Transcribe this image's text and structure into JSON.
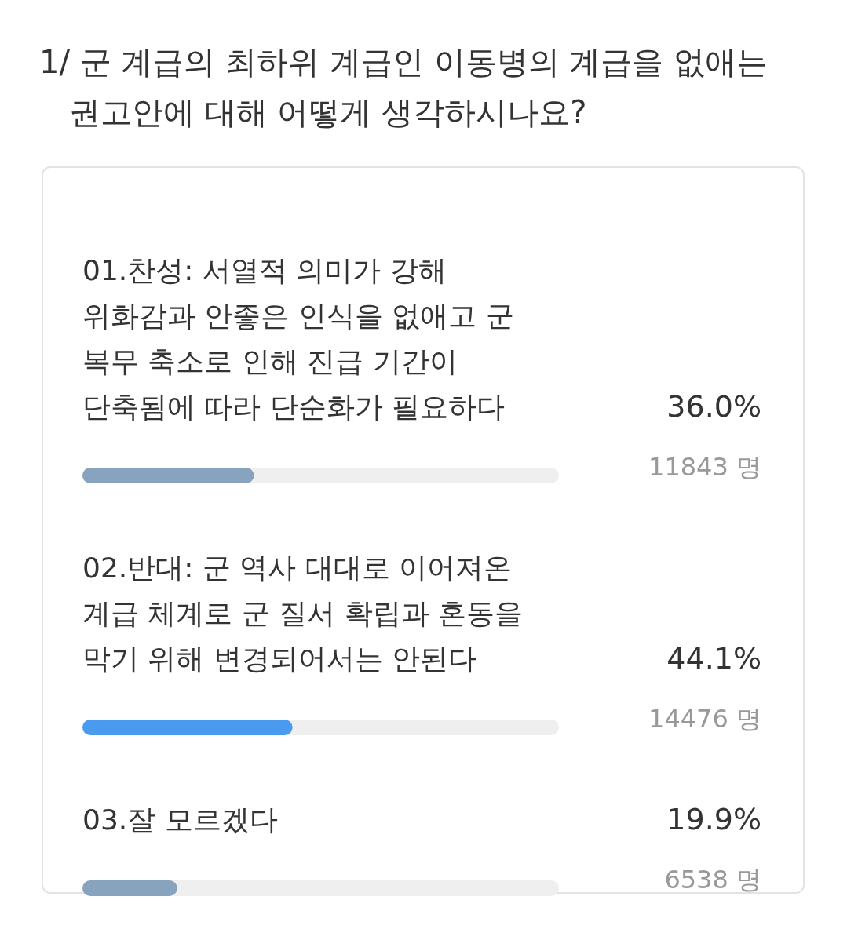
{
  "chart_data": {
    "type": "bar",
    "orientation": "horizontal",
    "title": "1/ 군 계급의 최하위 계급인 이동병의 계급을 없애는 권고안에 대해 어떻게 생각하시나요?",
    "categories": [
      "01.찬성: 서열적 의미가 강해 위화감과 안좋은 인식을 없애고 군 복무 축소로 인해 진급 기간이 단축됨에 따라 단순화가 필요하다",
      "02.반대: 군 역사 대대로 이어져온 계급 체계로 군 질서 확립과 혼동을 막기 위해 변경되어서는 안된다",
      "03.잘 모르겠다"
    ],
    "values": [
      36.0,
      44.1,
      19.9
    ],
    "colors": [
      "#87a3bd",
      "#4a9af0",
      "#87a3bd"
    ],
    "value_labels": [
      "36.0%",
      "44.1%",
      "19.9%"
    ],
    "annotations": [
      "11843 명",
      "14476 명",
      "6538 명"
    ],
    "xlim": [
      0,
      100
    ]
  }
}
